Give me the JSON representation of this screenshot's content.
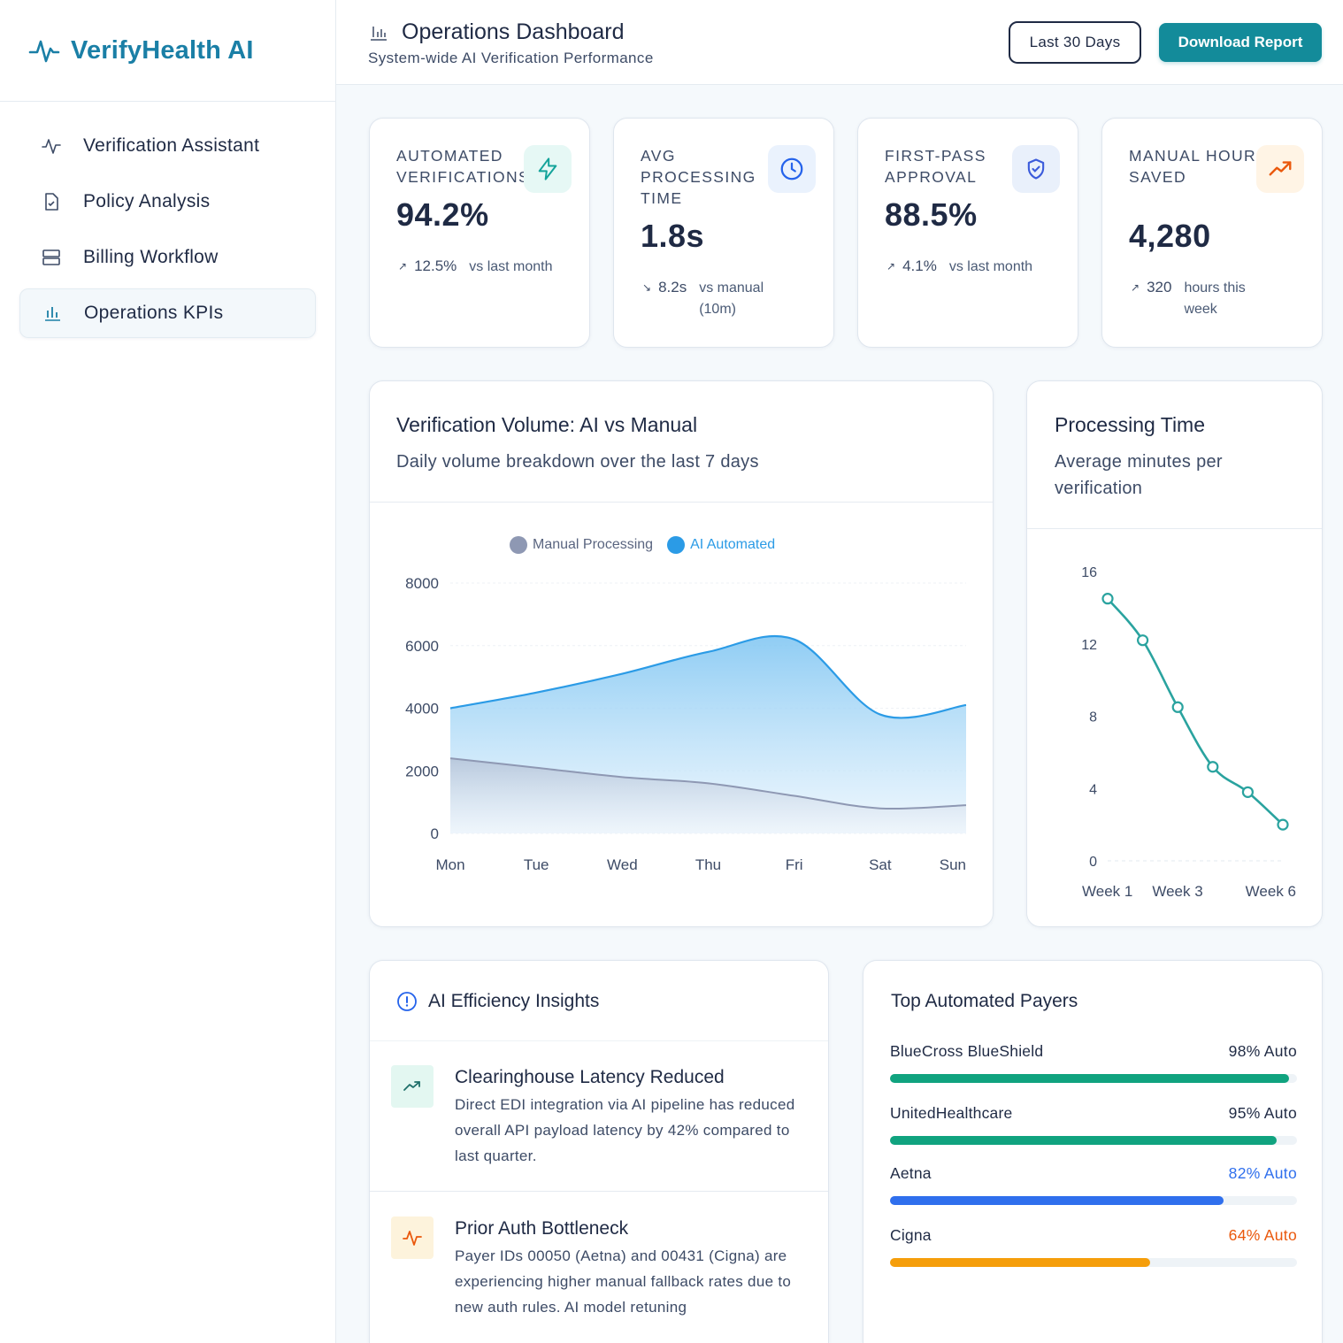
{
  "app": {
    "name": "VerifyHealth AI"
  },
  "sidebar": {
    "items": [
      {
        "label": "Verification Assistant",
        "icon": "activity-icon",
        "active": false
      },
      {
        "label": "Policy Analysis",
        "icon": "document-icon",
        "active": false
      },
      {
        "label": "Billing Workflow",
        "icon": "server-icon",
        "active": false
      },
      {
        "label": "Operations KPIs",
        "icon": "bar-chart-icon",
        "active": true
      }
    ]
  },
  "header": {
    "title": "Operations Dashboard",
    "subtitle": "System-wide AI Verification Performance",
    "range_button": "Last 30 Days",
    "download_button": "Download Report"
  },
  "kpis": [
    {
      "label": "Automated Verifications",
      "value": "94.2%",
      "arrow": "↗",
      "delta": "12.5%",
      "note": "vs last month",
      "icon": "lightning-icon",
      "icon_color": "#14a39a",
      "icon_bg": "#e6f8f5"
    },
    {
      "label": "Avg Processing Time",
      "value": "1.8s",
      "arrow": "↘",
      "delta": "8.2s",
      "note": "vs manual (10m)",
      "icon": "clock-icon",
      "icon_color": "#2563eb",
      "icon_bg": "#eaf2fd"
    },
    {
      "label": "First-Pass Approval",
      "value": "88.5%",
      "arrow": "↗",
      "delta": "4.1%",
      "note": "vs last month",
      "icon": "shield-check-icon",
      "icon_color": "#3b5bdb",
      "icon_bg": "#e9f0fb"
    },
    {
      "label": "Manual Hours Saved",
      "value": "4,280",
      "arrow": "↗",
      "delta": "320",
      "note": "hours this week",
      "icon": "trending-up-icon",
      "icon_color": "#ea580c",
      "icon_bg": "#fff4e5"
    }
  ],
  "volume_card": {
    "title": "Verification Volume: AI vs Manual",
    "subtitle": "Daily volume breakdown over the last 7 days"
  },
  "processing_card": {
    "title": "Processing Time",
    "subtitle": "Average minutes per verification"
  },
  "chart_data": [
    {
      "type": "area",
      "categories": [
        "Mon",
        "Tue",
        "Wed",
        "Thu",
        "Fri",
        "Sat",
        "Sun"
      ],
      "series": [
        {
          "name": "Manual Processing",
          "values": [
            2400,
            2100,
            1800,
            1600,
            1200,
            800,
            900
          ],
          "color": "#8e98b3"
        },
        {
          "name": "AI Automated",
          "values": [
            4000,
            4500,
            5100,
            5800,
            6200,
            3800,
            4100
          ],
          "color": "#2b9be6"
        }
      ],
      "ylim": [
        0,
        8000
      ],
      "yticks": [
        0,
        2000,
        4000,
        6000,
        8000
      ],
      "legend": "top",
      "grid": true
    },
    {
      "type": "line",
      "x": [
        "Week 1",
        "Week 2",
        "Week 3",
        "Week 4",
        "Week 5",
        "Week 6"
      ],
      "x_tick_labels": [
        "Week 1",
        "Week 3",
        "Week 6"
      ],
      "series": [
        {
          "values": [
            14.5,
            12.2,
            8.5,
            5.2,
            3.8,
            2.0
          ],
          "color": "#2aa39f"
        }
      ],
      "ylim": [
        0,
        16
      ],
      "yticks": [
        0,
        4,
        8,
        12,
        16
      ],
      "grid": false
    }
  ],
  "insights": {
    "title": "AI Efficiency Insights",
    "items": [
      {
        "title": "Clearinghouse Latency Reduced",
        "body": "Direct EDI integration via AI pipeline has reduced overall API payload latency by 42% compared to last quarter.",
        "icon": "trending-up-icon",
        "icon_color": "#1f6f6a",
        "icon_bg": "#e3f7f1"
      },
      {
        "title": "Prior Auth Bottleneck",
        "body": "Payer IDs 00050 (Aetna) and 00431 (Cigna) are experiencing higher manual fallback rates due to new auth rules. AI model retuning",
        "icon": "activity-icon",
        "icon_color": "#ea580c",
        "icon_bg": "#fdf3dc"
      }
    ]
  },
  "payers": {
    "title": "Top Automated Payers",
    "items": [
      {
        "name": "BlueCross BlueShield",
        "pct_label": "98% Auto",
        "fraction": 0.98,
        "color": "#10a37f",
        "label_color": "#1f2a44"
      },
      {
        "name": "UnitedHealthcare",
        "pct_label": "95% Auto",
        "fraction": 0.95,
        "color": "#10a37f",
        "label_color": "#1f2a44"
      },
      {
        "name": "Aetna",
        "pct_label": "82% Auto",
        "fraction": 0.82,
        "color": "#2f6fed",
        "label_color": "#2f6fed"
      },
      {
        "name": "Cigna",
        "pct_label": "64% Auto",
        "fraction": 0.64,
        "color": "#f59e0b",
        "label_color": "#ea580c"
      }
    ]
  }
}
